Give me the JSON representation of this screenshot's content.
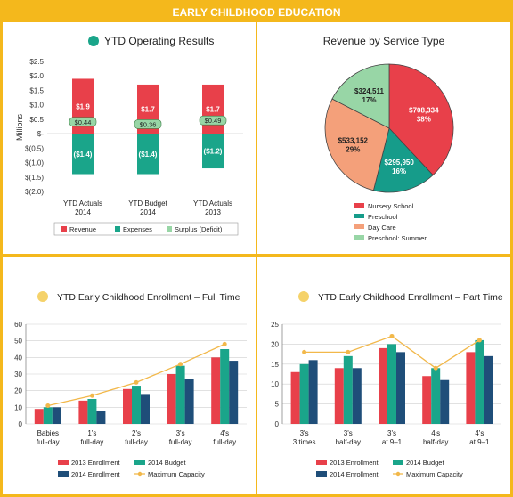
{
  "banner": {
    "title": "EARLY CHILDHOOD EDUCATION"
  },
  "colors": {
    "accent": "#f4b81c",
    "revenue": "#e8404a",
    "expenses": "#1aa58a",
    "surplus": "#98d6a6",
    "navy": "#1f4e79",
    "dot": "#f5d26a",
    "capacity": "#f2b84a",
    "nursery": "#e8404a",
    "preschool": "#169c8a",
    "daycare": "#f4a07a",
    "summer": "#98d6a6"
  },
  "chart_data": [
    {
      "id": "operating",
      "type": "bar",
      "title": "YTD Operating Results",
      "ylabel": "Millions",
      "ylim": [
        -2.0,
        2.5
      ],
      "yticks": [
        "$2.5",
        "$2.0",
        "$1.5",
        "$1.0",
        "$0.5",
        "$-",
        "$(0.5)",
        "$(1.0)",
        "$(1.5)",
        "$(2.0)"
      ],
      "categories": [
        [
          "YTD Actuals",
          "2014"
        ],
        [
          "YTD Budget",
          "2014"
        ],
        [
          "YTD Actuals",
          "2013"
        ]
      ],
      "series": [
        {
          "name": "Revenue",
          "values": [
            1.9,
            1.7,
            1.7
          ],
          "labels": [
            "$1.9",
            "$1.7",
            "$1.7"
          ]
        },
        {
          "name": "Expenses",
          "values": [
            -1.4,
            -1.4,
            -1.2
          ],
          "labels": [
            "($1.4)",
            "($1.4)",
            "($1.2)"
          ]
        },
        {
          "name": "Surplus (Deficit)",
          "values": [
            0.44,
            0.36,
            0.49
          ],
          "labels": [
            "$0.44",
            "$0.36",
            "$0.49"
          ]
        }
      ]
    },
    {
      "id": "revenue_pie",
      "type": "pie",
      "title": "Revenue by Service Type",
      "slices": [
        {
          "name": "Nursery School",
          "value": 708334,
          "label": "$708,334",
          "pct": "38%"
        },
        {
          "name": "Preschool",
          "value": 295950,
          "label": "$295,950",
          "pct": "16%"
        },
        {
          "name": "Day Care",
          "value": 533152,
          "label": "$533,152",
          "pct": "29%"
        },
        {
          "name": "Preschool: Summer",
          "value": 324511,
          "label": "$324,511",
          "pct": "17%"
        }
      ]
    },
    {
      "id": "full_time",
      "type": "bar",
      "title": "YTD Early Childhood Enrollment – Full Time",
      "ylim": [
        0,
        60
      ],
      "yticks": [
        "0",
        "10",
        "20",
        "30",
        "40",
        "50",
        "60"
      ],
      "categories": [
        [
          "Babies",
          "full-day"
        ],
        [
          "1's",
          "full-day"
        ],
        [
          "2's",
          "full-day"
        ],
        [
          "3's",
          "full-day"
        ],
        [
          "4's",
          "full-day"
        ]
      ],
      "series": [
        {
          "name": "2013 Enrollment",
          "values": [
            9,
            14,
            21,
            30,
            40
          ]
        },
        {
          "name": "2014 Budget",
          "values": [
            10,
            15,
            23,
            35,
            45
          ]
        },
        {
          "name": "2014 Enrollment",
          "values": [
            10,
            8,
            18,
            27,
            38
          ]
        }
      ],
      "line": {
        "name": "Maximum Capacity",
        "values": [
          11,
          17,
          25,
          36,
          48
        ]
      }
    },
    {
      "id": "part_time",
      "type": "bar",
      "title": "YTD Early Childhood Enrollment – Part Time",
      "ylim": [
        0,
        25
      ],
      "yticks": [
        "0",
        "5",
        "10",
        "15",
        "20",
        "25"
      ],
      "categories": [
        [
          "3's",
          "3 times"
        ],
        [
          "3's",
          "half-day"
        ],
        [
          "3's",
          "at 9–1"
        ],
        [
          "4's",
          "half-day"
        ],
        [
          "4's",
          "at 9–1"
        ]
      ],
      "series": [
        {
          "name": "2013 Enrollment",
          "values": [
            13,
            14,
            19,
            12,
            18
          ]
        },
        {
          "name": "2014 Budget",
          "values": [
            15,
            17,
            20,
            14,
            21
          ]
        },
        {
          "name": "2014 Enrollment",
          "values": [
            16,
            14,
            18,
            11,
            17
          ]
        }
      ],
      "line": {
        "name": "Maximum Capacity",
        "values": [
          18,
          18,
          22,
          14,
          21
        ]
      }
    }
  ]
}
